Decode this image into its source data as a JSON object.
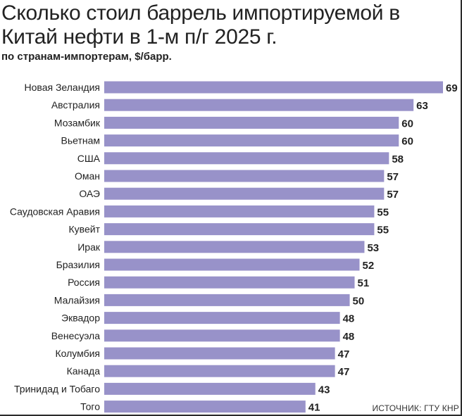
{
  "chart_data": {
    "type": "bar",
    "orientation": "horizontal",
    "title": "Сколько стоил баррель импортируемой в Китай нефти в 1-м п/г 2025 г.",
    "subtitle": "по странам-импортерам, $/барр.",
    "source": "ИСТОЧНИК: ГТУ КНР",
    "categories": [
      "Новая Зеландия",
      "Австралия",
      "Мозамбик",
      "Вьетнам",
      "США",
      "Оман",
      "ОАЭ",
      "Саудовская Аравия",
      "Кувейт",
      "Ирак",
      "Бразилия",
      "Россия",
      "Малайзия",
      "Эквадор",
      "Венесуэла",
      "Колумбия",
      "Канада",
      "Тринидад и Тобаго",
      "Того"
    ],
    "values": [
      69,
      63,
      60,
      60,
      58,
      57,
      57,
      55,
      55,
      53,
      52,
      51,
      50,
      48,
      48,
      47,
      47,
      43,
      41
    ],
    "bar_color": "#9892c9",
    "grid": false
  }
}
